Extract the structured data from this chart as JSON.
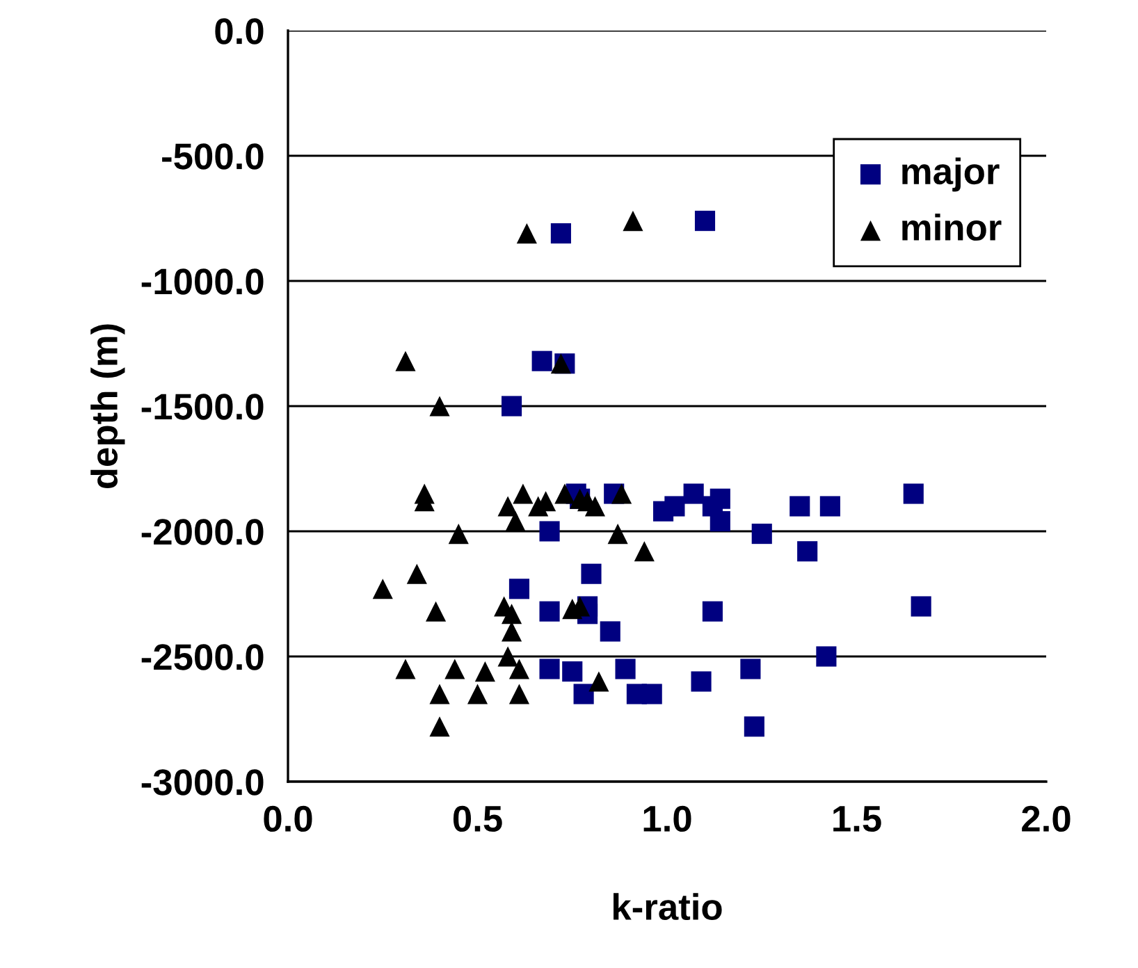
{
  "chart_data": {
    "type": "scatter",
    "xlabel": "k-ratio",
    "ylabel": "depth (m)",
    "xlim": [
      0,
      2
    ],
    "xticks": [
      {
        "value": 0,
        "label": "0.0"
      },
      {
        "value": 0.5,
        "label": "0.5"
      },
      {
        "value": 1,
        "label": "1.0"
      },
      {
        "value": 1.5,
        "label": "1.5"
      },
      {
        "value": 2,
        "label": "2.0"
      }
    ],
    "ylim": [
      -3000,
      0
    ],
    "yticks": [
      {
        "value": -3000,
        "label": "-3000.0"
      },
      {
        "value": -2500,
        "label": "-2500.0"
      },
      {
        "value": -2000,
        "label": "-2000.0"
      },
      {
        "value": -1500,
        "label": "-1500.0"
      },
      {
        "value": -1000,
        "label": "-1000.0"
      },
      {
        "value": -500,
        "label": "-500.0"
      },
      {
        "value": 0,
        "label": "0.0"
      }
    ],
    "grid": "y",
    "legend": "top right",
    "series": [
      {
        "name": "major",
        "color": "#000080",
        "marker": "square",
        "x": [
          0.72,
          1.1,
          0.67,
          0.73,
          0.59,
          0.76,
          0.77,
          0.86,
          1.07,
          1.14,
          1.65,
          1.35,
          1.43,
          1.02,
          0.99,
          1.12,
          1.14,
          0.69,
          1.25,
          1.37,
          0.8,
          0.61,
          0.69,
          0.79,
          0.79,
          1.12,
          1.67,
          0.85,
          1.42,
          0.69,
          0.75,
          0.89,
          1.22,
          0.78,
          0.92,
          0.96,
          1.09,
          1.23
        ],
        "values": [
          -810,
          -760,
          -1320,
          -1330,
          -1500,
          -1850,
          -1870,
          -1850,
          -1850,
          -1870,
          -1850,
          -1900,
          -1900,
          -1900,
          -1920,
          -1900,
          -1960,
          -2000,
          -2010,
          -2080,
          -2170,
          -2230,
          -2320,
          -2300,
          -2330,
          -2320,
          -2300,
          -2400,
          -2500,
          -2550,
          -2560,
          -2550,
          -2550,
          -2650,
          -2650,
          -2650,
          -2600,
          -2780
        ]
      },
      {
        "name": "minor",
        "color": "#000000",
        "marker": "triangle",
        "x": [
          0.63,
          0.91,
          0.31,
          0.72,
          0.4,
          0.36,
          0.36,
          0.62,
          0.58,
          0.66,
          0.68,
          0.73,
          0.77,
          0.79,
          0.81,
          0.88,
          0.6,
          0.45,
          0.87,
          0.94,
          0.34,
          0.25,
          0.39,
          0.57,
          0.59,
          0.59,
          0.75,
          0.77,
          0.58,
          0.31,
          0.44,
          0.52,
          0.61,
          0.82,
          0.4,
          0.5,
          0.61,
          0.4
        ],
        "values": [
          -810,
          -760,
          -1320,
          -1330,
          -1500,
          -1850,
          -1880,
          -1850,
          -1900,
          -1900,
          -1880,
          -1850,
          -1870,
          -1880,
          -1900,
          -1850,
          -1960,
          -2010,
          -2010,
          -2080,
          -2170,
          -2230,
          -2320,
          -2300,
          -2330,
          -2400,
          -2310,
          -2300,
          -2500,
          -2550,
          -2550,
          -2560,
          -2550,
          -2600,
          -2650,
          -2650,
          -2650,
          -2780
        ]
      }
    ]
  }
}
